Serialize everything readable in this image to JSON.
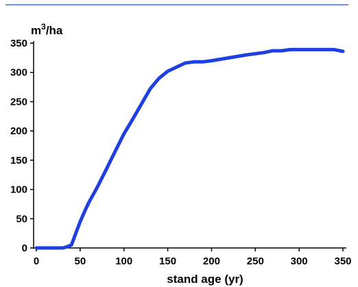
{
  "chart_data": {
    "type": "line",
    "title": "",
    "xlabel": "stand age (yr)",
    "ylabel_base": "m",
    "ylabel_sup": "3",
    "ylabel_rest": "/ha",
    "xlim": [
      0,
      350
    ],
    "ylim": [
      0,
      350
    ],
    "xticks": [
      0,
      50,
      100,
      150,
      200,
      250,
      300,
      350
    ],
    "yticks": [
      0,
      50,
      100,
      150,
      200,
      250,
      300,
      350
    ],
    "grid": false,
    "series": [
      {
        "color": "#1f3fe0",
        "x": [
          0,
          10,
          20,
          30,
          35,
          40,
          45,
          50,
          55,
          60,
          70,
          80,
          90,
          100,
          110,
          120,
          130,
          140,
          150,
          160,
          170,
          180,
          190,
          200,
          220,
          240,
          260,
          270,
          280,
          290,
          300,
          320,
          340,
          350
        ],
        "y": [
          0,
          0,
          0,
          0,
          2,
          5,
          25,
          45,
          62,
          78,
          105,
          135,
          165,
          195,
          220,
          246,
          272,
          290,
          302,
          309,
          316,
          318,
          318,
          320,
          325,
          330,
          334,
          337,
          337,
          339,
          339,
          339,
          339,
          336
        ]
      }
    ]
  },
  "decor": {
    "top_rule_color": "#3b6fd6"
  }
}
